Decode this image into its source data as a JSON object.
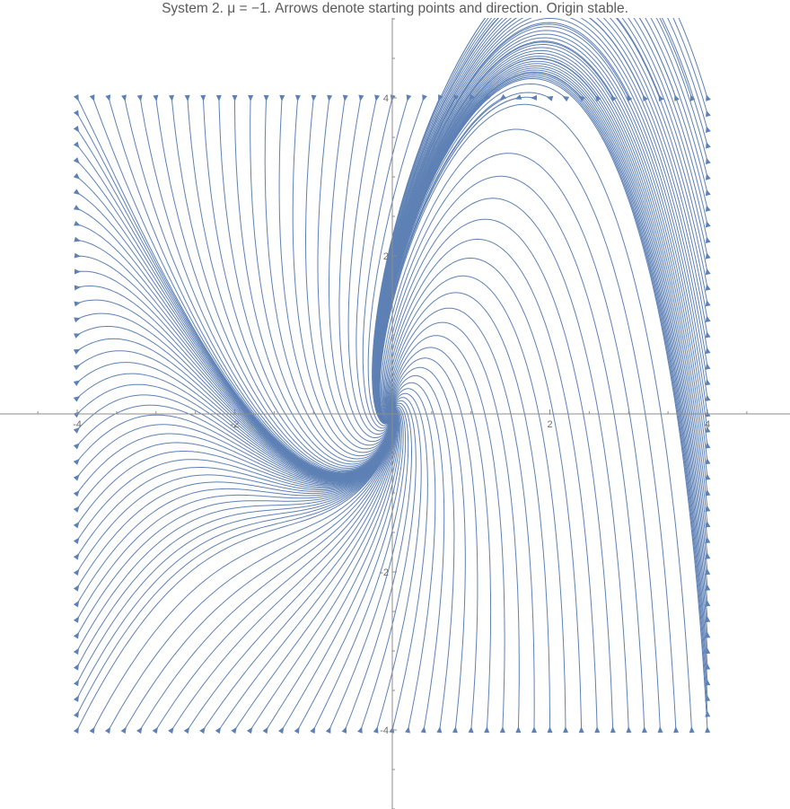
{
  "title": "System 2. μ = −1. Arrows denote starting points and direction. Origin stable.",
  "chart_data": {
    "type": "streamplot",
    "title": "System 2. μ = −1. Arrows denote starting points and direction. Origin stable.",
    "xlabel": "",
    "ylabel": "",
    "xlim": [
      -5,
      4.8
    ],
    "ylim": [
      -5,
      5
    ],
    "x_ticks": [
      {
        "value": -4,
        "label": "-4"
      },
      {
        "value": -2,
        "label": "-2"
      },
      {
        "value": 2,
        "label": "2"
      },
      {
        "value": 4,
        "label": "4"
      }
    ],
    "y_ticks": [
      {
        "value": -4,
        "label": "-4"
      },
      {
        "value": -2,
        "label": "-2"
      },
      {
        "value": 2,
        "label": "2"
      },
      {
        "value": 4,
        "label": "4"
      }
    ],
    "seed_box": {
      "x": [
        -4,
        4
      ],
      "y": [
        -4,
        4
      ]
    },
    "seed_spacing": 0.2,
    "equilibrium": {
      "x": 0,
      "y": 0,
      "stability": "stable"
    },
    "mu": -1,
    "line_color": "#5e81b5",
    "axis_color": "#8c8c8c",
    "grid": false
  }
}
